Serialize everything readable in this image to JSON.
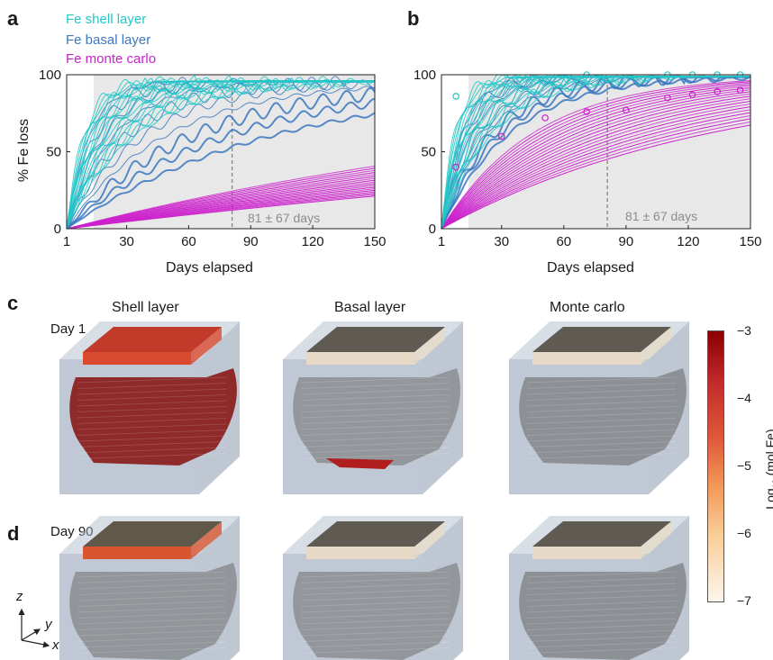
{
  "colors": {
    "shell": "#22c7c7",
    "basal": "#3b78c0",
    "monte_carlo": "#cc22cc",
    "shade": "#e8e8e8",
    "annotation": "#8c8c8c"
  },
  "panel_a": {
    "letter": "a",
    "legend": [
      "Fe shell layer",
      "Fe basal layer",
      "Fe monte carlo"
    ],
    "annotation": "81 ± 67 days"
  },
  "panel_b": {
    "letter": "b",
    "annotation": "81 ± 67 days"
  },
  "chart_data": [
    {
      "type": "line",
      "panel": "a",
      "xlabel": "Days elapsed",
      "ylabel": "% Fe loss",
      "xlim": [
        1,
        150
      ],
      "ylim": [
        0,
        100
      ],
      "xticks": [
        "1",
        "30",
        "60",
        "90",
        "120",
        "150"
      ],
      "yticks": [
        "0",
        "50",
        "100"
      ],
      "shaded_interval": [
        14,
        150
      ],
      "dashed_line_x": 81,
      "series": [
        {
          "name": "Fe shell layer",
          "color": "#22c7c7",
          "curves": 18,
          "k_range": [
            0.03,
            0.12
          ],
          "plateau": 96
        },
        {
          "name": "Fe basal layer",
          "color": "#3b78c0",
          "curves": 10,
          "k_range": [
            0.01,
            0.09
          ],
          "plateau": 96
        },
        {
          "name": "Fe monte carlo",
          "color": "#cc22cc",
          "curves": 18,
          "k_range": [
            0.0016,
            0.0035
          ],
          "plateau": 100
        }
      ]
    },
    {
      "type": "line",
      "panel": "b",
      "xlabel": "Days elapsed",
      "ylabel": "",
      "xlim": [
        1,
        150
      ],
      "ylim": [
        0,
        100
      ],
      "xticks": [
        "1",
        "30",
        "60",
        "90",
        "120",
        "150"
      ],
      "yticks": [
        "0",
        "50",
        "100"
      ],
      "shaded_interval": [
        14,
        150
      ],
      "dashed_line_x": 81,
      "series": [
        {
          "name": "Fe shell layer",
          "color": "#22c7c7",
          "curves": 18,
          "k_range": [
            0.04,
            0.15
          ],
          "plateau": 99
        },
        {
          "name": "Fe basal layer",
          "color": "#3b78c0",
          "curves": 10,
          "k_range": [
            0.03,
            0.1
          ],
          "plateau": 99
        },
        {
          "name": "Fe monte carlo",
          "color": "#cc22cc",
          "curves": 20,
          "k_range": [
            0.0075,
            0.022
          ],
          "plateau": 100
        }
      ],
      "markers": {
        "shell": {
          "x": [
            8,
            71,
            110,
            122,
            134,
            145
          ],
          "y": [
            86,
            100,
            100,
            100,
            100,
            100
          ]
        },
        "monte_carlo": {
          "x": [
            8,
            30,
            51,
            71,
            90,
            110,
            122,
            134,
            145
          ],
          "y": [
            40,
            60,
            72,
            76,
            77,
            85,
            87,
            89,
            90
          ]
        }
      }
    }
  ],
  "panel_c": {
    "letter": "c",
    "row_label": "Day 1",
    "column_titles": [
      "Shell layer",
      "Basal layer",
      "Monte carlo"
    ]
  },
  "panel_d": {
    "letter": "d",
    "row_label": "Day 90"
  },
  "colorbar": {
    "ticks": [
      "−3",
      "−4",
      "−5",
      "−6",
      "−7"
    ],
    "label_prefix": "Log",
    "label_sub": "10",
    "label_suffix": " (mol Fe)",
    "color_top": "#8b0000",
    "color_mid": "#e05a3a",
    "color_low": "#f9cf9a",
    "color_bottom": "#fdf5ec"
  },
  "axes_icon": {
    "x": "x",
    "y": "y",
    "z": "z"
  },
  "blocks": {
    "c": [
      {
        "top": "#c23a2a",
        "top_light": "#d95a40",
        "body": "#8c2222",
        "slab": "#d94a30"
      },
      {
        "top": "#5f5a52",
        "top_light": "#7a746a",
        "body": "#909498",
        "slab": "#e6d9c6"
      },
      {
        "top": "#5f5a52",
        "top_light": "#7a746a",
        "body": "#8a8d91",
        "slab": "#e6d9c6"
      }
    ],
    "d": [
      {
        "top": "#605848",
        "top_light": "#7a7060",
        "body": "#8f9296",
        "slab": "#d9552f"
      },
      {
        "top": "#5f5a52",
        "top_light": "#7a746a",
        "body": "#909498",
        "slab": "#e6d9c6"
      },
      {
        "top": "#5f5a52",
        "top_light": "#7a746a",
        "body": "#8a8d91",
        "slab": "#e6d9c6"
      }
    ]
  }
}
